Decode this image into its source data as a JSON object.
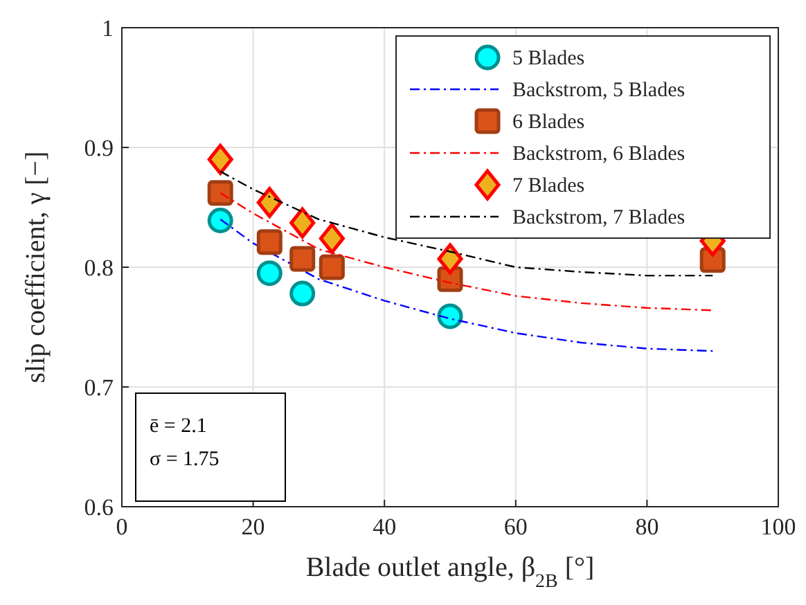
{
  "chart_data": {
    "type": "scatter",
    "xlabel": "Blade outlet angle, β$_{2B}$ [°]",
    "ylabel": "slip coefficient, γ [−]",
    "xlim": [
      0,
      100
    ],
    "xticks": [
      0,
      20,
      40,
      60,
      80,
      100
    ],
    "ylim": [
      0.6,
      1
    ],
    "yticks": [
      0.6,
      0.7,
      0.8,
      0.9,
      1
    ],
    "grid": true,
    "legend": "top right",
    "series": [
      {
        "name": "5 Blades",
        "marker": "circle",
        "color": "#00ffff",
        "x": [
          15,
          22.5,
          27.5,
          50
        ],
        "values": [
          0.839,
          0.795,
          0.778,
          0.759
        ]
      },
      {
        "name": "Backstrom, 5 Blades",
        "type": "line",
        "line_style": "dashed",
        "color": "#0000ff",
        "x": [
          15,
          20,
          30,
          40,
          50,
          60,
          70,
          80,
          90
        ],
        "values": [
          0.84,
          0.82,
          0.79,
          0.772,
          0.757,
          0.745,
          0.737,
          0.732,
          0.73
        ]
      },
      {
        "name": "6 Blades",
        "marker": "square",
        "color": "#d95319",
        "x": [
          15,
          22.5,
          27.5,
          32,
          50,
          90
        ],
        "values": [
          0.862,
          0.821,
          0.807,
          0.8,
          0.79,
          0.806
        ]
      },
      {
        "name": "Backstrom, 6 Blades",
        "type": "line",
        "line_style": "dashed",
        "color": "#ff0000",
        "x": [
          15,
          20,
          30,
          40,
          50,
          60,
          70,
          80,
          90
        ],
        "values": [
          0.862,
          0.845,
          0.815,
          0.8,
          0.787,
          0.776,
          0.77,
          0.766,
          0.764
        ]
      },
      {
        "name": "7 Blades",
        "marker": "diamond",
        "color": "#edb120",
        "x": [
          15,
          22.5,
          27.5,
          32,
          50,
          90
        ],
        "values": [
          0.89,
          0.854,
          0.837,
          0.824,
          0.807,
          0.822
        ]
      },
      {
        "name": "Backstrom, 7 Blades",
        "type": "line",
        "line_style": "dashed",
        "color": "#000000",
        "x": [
          15,
          20,
          30,
          40,
          50,
          60,
          70,
          80,
          90
        ],
        "values": [
          0.88,
          0.865,
          0.84,
          0.825,
          0.813,
          0.8,
          0.796,
          0.793,
          0.793
        ]
      }
    ],
    "annotations": [
      "ē = 2.1",
      "σ = 1.75"
    ]
  }
}
